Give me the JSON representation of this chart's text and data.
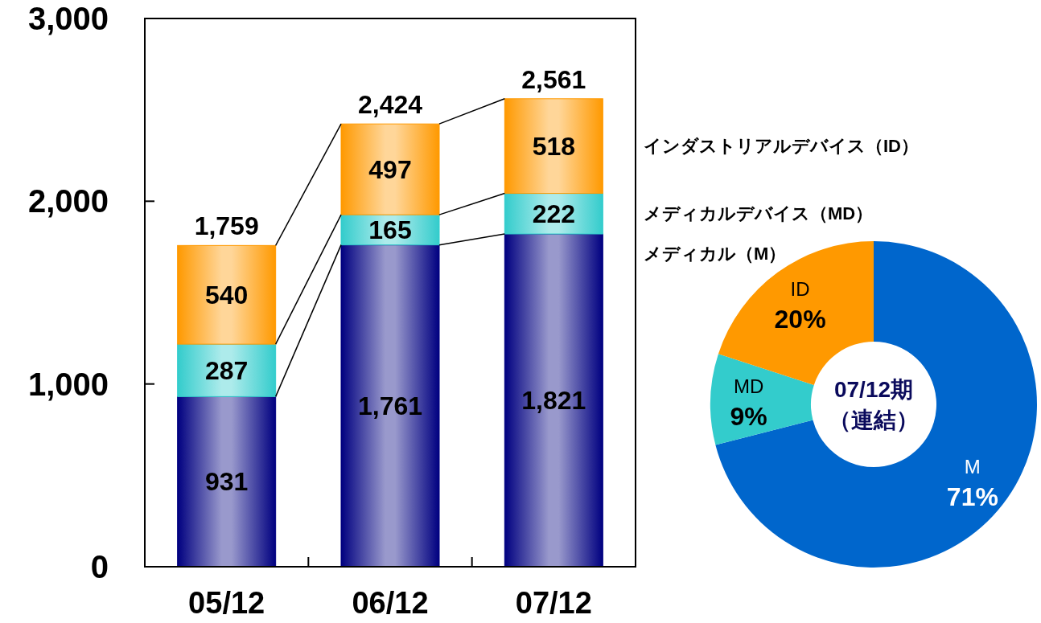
{
  "chart_data": [
    {
      "type": "bar",
      "stacked": true,
      "categories": [
        "05/12",
        "06/12",
        "07/12"
      ],
      "series": [
        {
          "name": "メディカル（M）",
          "color": "#000080",
          "values": [
            931,
            1761,
            1821
          ],
          "value_labels": [
            "931",
            "1,761",
            "1,821"
          ]
        },
        {
          "name": "メディカルデバイス（MD）",
          "color": "#33cccc",
          "values": [
            287,
            165,
            222
          ],
          "value_labels": [
            "287",
            "165",
            "222"
          ]
        },
        {
          "name": "インダストリアルデバイス（ID）",
          "color": "#ff9900",
          "values": [
            540,
            497,
            518
          ],
          "value_labels": [
            "540",
            "497",
            "518"
          ]
        }
      ],
      "totals": [
        "1,759",
        "2,424",
        "2,561"
      ],
      "ylim": [
        0,
        3000
      ],
      "yticks": [
        0,
        {
          "value": 1000,
          "label": "1,000"
        },
        {
          "value": 2000,
          "label": "2,000"
        },
        {
          "value": 3000,
          "label": "3,000"
        }
      ]
    },
    {
      "type": "donut",
      "categories": [
        "M",
        "MD",
        "ID"
      ],
      "values": [
        71,
        9,
        20
      ],
      "colors": [
        "#0066cc",
        "#33cccc",
        "#ff9900"
      ],
      "value_labels": [
        "71%",
        "9%",
        "20%"
      ],
      "annotations": [
        "07/12期（連結）"
      ]
    }
  ]
}
